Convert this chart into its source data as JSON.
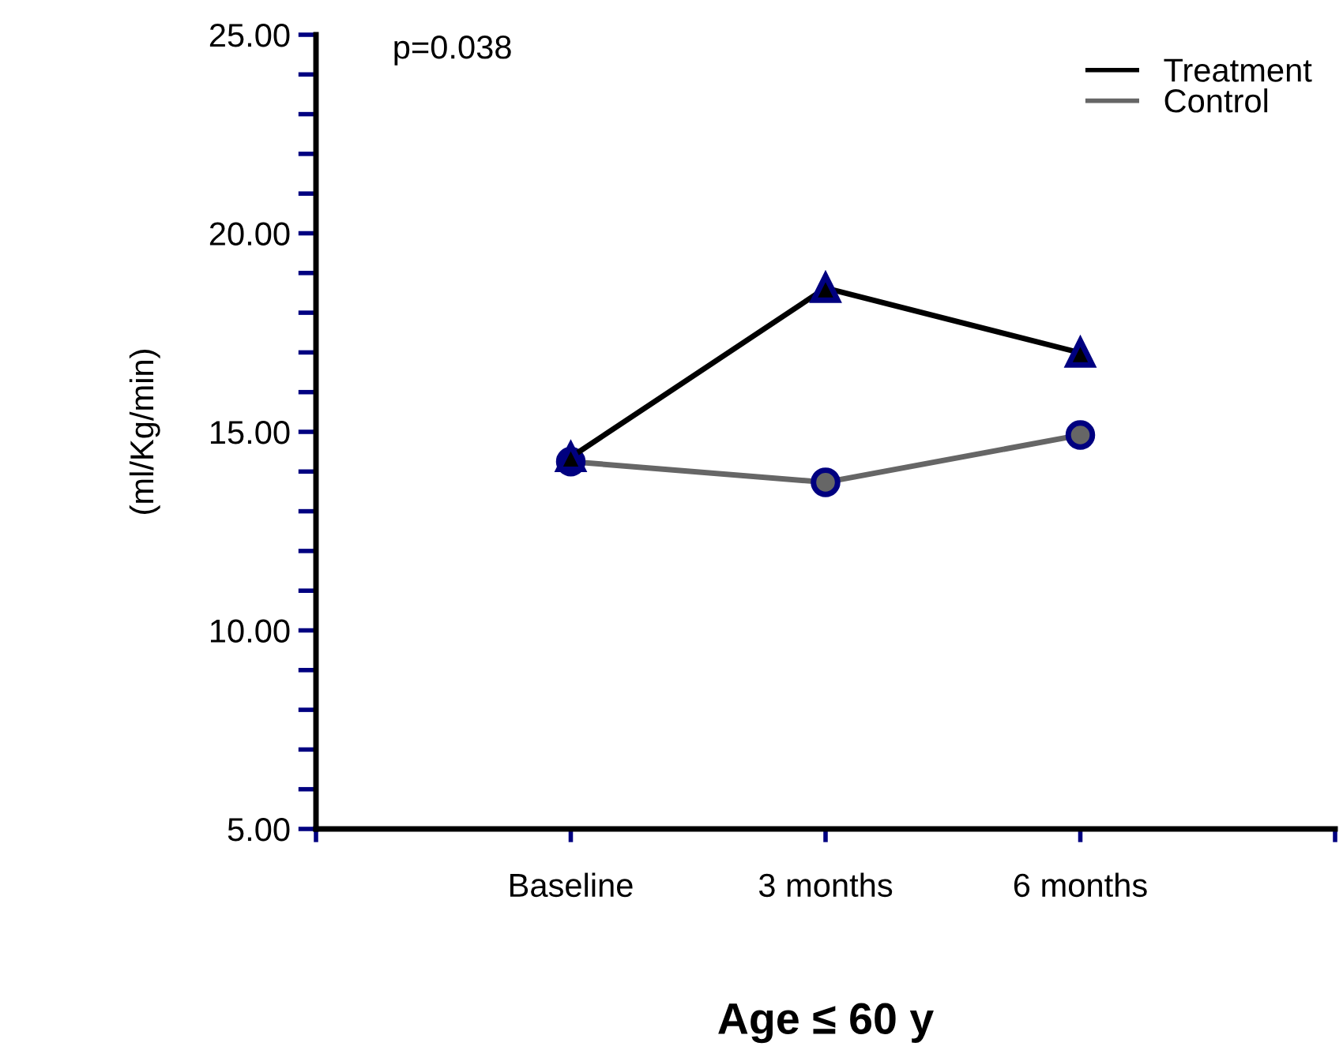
{
  "chart_data": {
    "type": "line",
    "xlabel": "Age ≤ 60 y",
    "ylabel": "(ml/Kg/min)",
    "annotations": [
      "p=0.038"
    ],
    "categories": [
      "Baseline",
      "3 months",
      "6 months"
    ],
    "series": [
      {
        "name": "Treatment",
        "color": "#000000",
        "marker": "triangle",
        "values": [
          14.36,
          18.62,
          16.99
        ]
      },
      {
        "name": "Control",
        "color": "#666666",
        "marker": "circle",
        "values": [
          14.25,
          13.73,
          14.92
        ]
      }
    ],
    "ylim": [
      5,
      25
    ],
    "yticks": [
      {
        "value": 5,
        "label": "5.00"
      },
      {
        "value": 10,
        "label": "10.00"
      },
      {
        "value": 15,
        "label": "15.00"
      },
      {
        "value": 20,
        "label": "20.00"
      },
      {
        "value": 25,
        "label": "25.00"
      }
    ],
    "grid": false,
    "legend": "top right"
  }
}
